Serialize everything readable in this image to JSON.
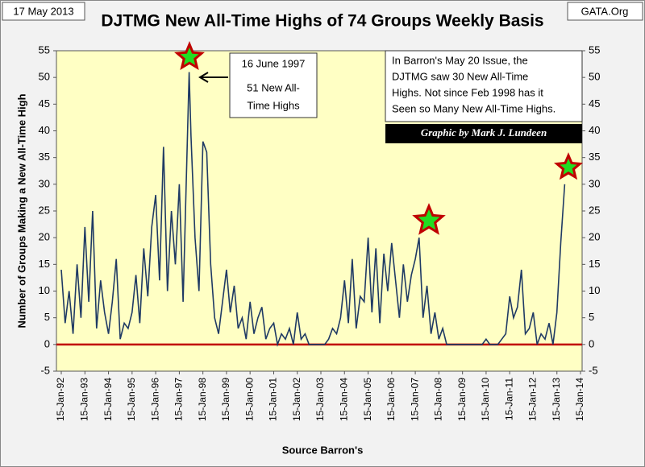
{
  "chart_data": {
    "type": "line",
    "title": "DJTMG New All-Time Highs of 74 Groups Weekly Basis",
    "date_label": "17 May 2013",
    "source_site": "GATA.Org",
    "x_label": "Source Barron's",
    "y_label": "Number of Groups Making a New All-Time High",
    "credit": "Graphic by Mark J. Lundeen",
    "annotations": [
      {
        "lines": [
          "16 June 1997",
          "51 New All-",
          "Time Highs"
        ]
      },
      {
        "lines": [
          "In Barron's May 20 Issue, the",
          "DJTMG saw 30 New All-Time",
          "Highs.   Not since Feb 1998 has it",
          "Seen so Many New All-Time Highs."
        ]
      }
    ],
    "series": [
      {
        "name": "New All-Time Highs",
        "color": "#1f3a64",
        "x": [
          "1992-01-15",
          "1992-03-15",
          "1992-05-15",
          "1992-07-15",
          "1992-09-15",
          "1992-11-15",
          "1993-01-15",
          "1993-03-15",
          "1993-05-15",
          "1993-07-15",
          "1993-09-15",
          "1993-11-15",
          "1994-01-15",
          "1994-03-15",
          "1994-05-15",
          "1994-07-15",
          "1994-09-15",
          "1994-11-15",
          "1995-01-15",
          "1995-03-15",
          "1995-05-15",
          "1995-07-15",
          "1995-09-15",
          "1995-11-15",
          "1996-01-15",
          "1996-03-15",
          "1996-05-15",
          "1996-07-15",
          "1996-09-15",
          "1996-11-15",
          "1997-01-15",
          "1997-03-15",
          "1997-06-16",
          "1997-07-15",
          "1997-09-15",
          "1997-11-15",
          "1998-01-15",
          "1998-03-15",
          "1998-05-15",
          "1998-07-15",
          "1998-09-15",
          "1998-11-15",
          "1999-01-15",
          "1999-03-15",
          "1999-05-15",
          "1999-07-15",
          "1999-09-15",
          "1999-11-15",
          "2000-01-15",
          "2000-03-15",
          "2000-05-15",
          "2000-07-15",
          "2000-09-15",
          "2000-11-15",
          "2001-01-15",
          "2001-03-15",
          "2001-05-15",
          "2001-07-15",
          "2001-09-15",
          "2001-11-15",
          "2002-01-15",
          "2002-03-15",
          "2002-05-15",
          "2002-07-15",
          "2002-09-15",
          "2002-11-15",
          "2003-01-15",
          "2003-03-15",
          "2003-05-15",
          "2003-07-15",
          "2003-09-15",
          "2003-11-15",
          "2004-01-15",
          "2004-03-15",
          "2004-05-15",
          "2004-07-15",
          "2004-09-15",
          "2004-11-15",
          "2005-01-15",
          "2005-03-15",
          "2005-05-15",
          "2005-07-15",
          "2005-09-15",
          "2005-11-15",
          "2006-01-15",
          "2006-03-15",
          "2006-05-15",
          "2006-07-15",
          "2006-09-15",
          "2006-11-15",
          "2007-01-15",
          "2007-03-15",
          "2007-05-15",
          "2007-07-15",
          "2007-09-15",
          "2007-11-15",
          "2008-01-15",
          "2008-03-15",
          "2008-05-15",
          "2008-07-15",
          "2008-09-15",
          "2008-11-15",
          "2009-01-15",
          "2009-03-15",
          "2009-05-15",
          "2009-07-15",
          "2009-09-15",
          "2009-11-15",
          "2010-01-15",
          "2010-03-15",
          "2010-05-15",
          "2010-07-15",
          "2010-09-15",
          "2010-11-15",
          "2011-01-15",
          "2011-03-15",
          "2011-05-15",
          "2011-07-15",
          "2011-09-15",
          "2011-11-15",
          "2012-01-15",
          "2012-03-15",
          "2012-05-15",
          "2012-07-15",
          "2012-09-15",
          "2012-11-15",
          "2013-01-15",
          "2013-03-15",
          "2013-05-15"
        ],
        "values": [
          14,
          4,
          10,
          2,
          15,
          5,
          22,
          8,
          25,
          3,
          12,
          6,
          2,
          8,
          16,
          1,
          4,
          3,
          6,
          13,
          4,
          18,
          9,
          22,
          28,
          12,
          37,
          10,
          25,
          15,
          30,
          8,
          51,
          39,
          20,
          10,
          38,
          36,
          15,
          5,
          2,
          8,
          14,
          6,
          11,
          3,
          5,
          1,
          8,
          2,
          5,
          7,
          1,
          3,
          4,
          0,
          2,
          1,
          3,
          0,
          6,
          1,
          2,
          0,
          0,
          0,
          0,
          0,
          1,
          3,
          2,
          5,
          12,
          4,
          16,
          3,
          9,
          8,
          20,
          6,
          18,
          4,
          17,
          10,
          19,
          12,
          5,
          15,
          8,
          13,
          16,
          20,
          5,
          11,
          2,
          6,
          1,
          3,
          0,
          0,
          0,
          0,
          0,
          0,
          0,
          0,
          0,
          0,
          1,
          0,
          0,
          0,
          1,
          2,
          9,
          5,
          7,
          14,
          2,
          3,
          6,
          0,
          2,
          1,
          4,
          0,
          6,
          19,
          30
        ]
      }
    ],
    "xlim": [
      "1992-01-15",
      "2014-01-15"
    ],
    "xticks": [
      {
        "value": "1992-01-15",
        "label": "15-Jan-92"
      },
      {
        "value": "1993-01-15",
        "label": "15-Jan-93"
      },
      {
        "value": "1994-01-15",
        "label": "15-Jan-94"
      },
      {
        "value": "1995-01-15",
        "label": "15-Jan-95"
      },
      {
        "value": "1996-01-15",
        "label": "15-Jan-96"
      },
      {
        "value": "1997-01-15",
        "label": "15-Jan-97"
      },
      {
        "value": "1998-01-15",
        "label": "15-Jan-98"
      },
      {
        "value": "1999-01-15",
        "label": "15-Jan-99"
      },
      {
        "value": "2000-01-15",
        "label": "15-Jan-00"
      },
      {
        "value": "2001-01-15",
        "label": "15-Jan-01"
      },
      {
        "value": "2002-01-15",
        "label": "15-Jan-02"
      },
      {
        "value": "2003-01-15",
        "label": "15-Jan-03"
      },
      {
        "value": "2004-01-15",
        "label": "15-Jan-04"
      },
      {
        "value": "2005-01-15",
        "label": "15-Jan-05"
      },
      {
        "value": "2006-01-15",
        "label": "15-Jan-06"
      },
      {
        "value": "2007-01-15",
        "label": "15-Jan-07"
      },
      {
        "value": "2008-01-15",
        "label": "15-Jan-08"
      },
      {
        "value": "2009-01-15",
        "label": "15-Jan-09"
      },
      {
        "value": "2010-01-15",
        "label": "15-Jan-10"
      },
      {
        "value": "2011-01-15",
        "label": "15-Jan-11"
      },
      {
        "value": "2012-01-15",
        "label": "15-Jan-12"
      },
      {
        "value": "2013-01-15",
        "label": "15-Jan-13"
      },
      {
        "value": "2014-01-15",
        "label": "15-Jan-14"
      }
    ],
    "ylim": [
      -5,
      55
    ],
    "yticks": [
      -5,
      0,
      5,
      10,
      15,
      20,
      25,
      30,
      35,
      40,
      45,
      50,
      55
    ],
    "y2lim": [
      -5,
      55
    ],
    "y2ticks": [
      -5,
      0,
      5,
      10,
      15,
      20,
      25,
      30,
      35,
      40,
      45,
      50,
      55
    ],
    "grid": false
  }
}
